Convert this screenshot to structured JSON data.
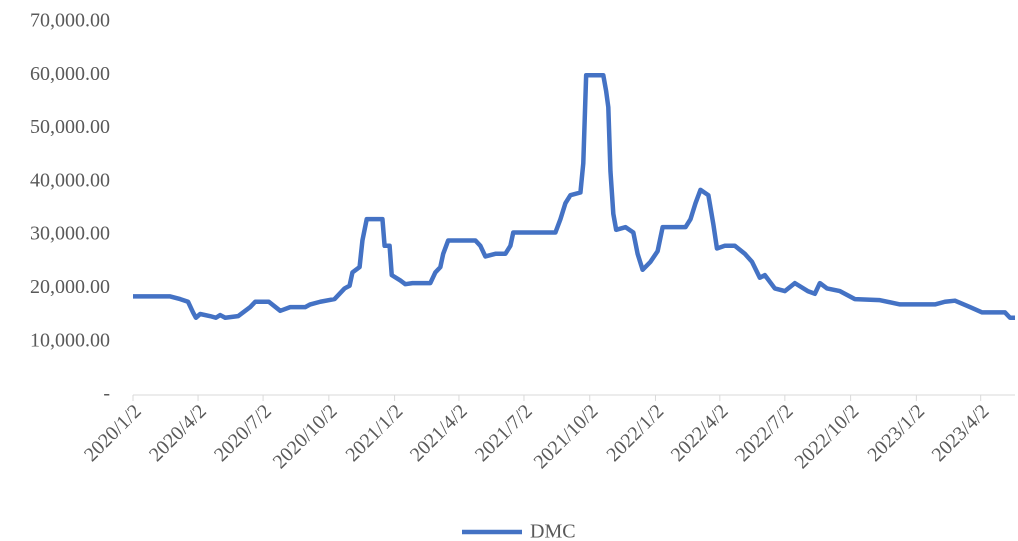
{
  "chart_data": {
    "type": "line",
    "x": [
      "2020/1/2",
      "2020/2/23",
      "2020/3/8",
      "2020/3/19",
      "2020/3/26",
      "2020/3/30",
      "2020/4/5",
      "2020/4/19",
      "2020/4/27",
      "2020/5/3",
      "2020/5/10",
      "2020/5/28",
      "2020/6/14",
      "2020/6/21",
      "2020/7/10",
      "2020/7/26",
      "2020/8/9",
      "2020/8/30",
      "2020/9/6",
      "2020/9/20",
      "2020/10/10",
      "2020/10/24",
      "2020/10/31",
      "2020/11/4",
      "2020/11/14",
      "2020/11/18",
      "2020/11/24",
      "2020/12/16",
      "2020/12/19",
      "2020/12/26",
      "2020/12/29",
      "2021/1/10",
      "2021/1/17",
      "2021/1/27",
      "2021/2/21",
      "2021/2/28",
      "2021/3/7",
      "2021/3/11",
      "2021/3/18",
      "2021/4/25",
      "2021/5/2",
      "2021/5/9",
      "2021/5/23",
      "2021/6/6",
      "2021/6/13",
      "2021/6/17",
      "2021/8/15",
      "2021/8/22",
      "2021/8/29",
      "2021/9/5",
      "2021/9/19",
      "2021/9/23",
      "2021/9/27",
      "2021/10/21",
      "2021/10/25",
      "2021/10/28",
      "2021/10/31",
      "2021/11/4",
      "2021/11/8",
      "2021/11/21",
      "2021/12/2",
      "2021/12/8",
      "2021/12/15",
      "2021/12/26",
      "2022/1/5",
      "2022/1/12",
      "2022/2/13",
      "2022/2/20",
      "2022/2/27",
      "2022/3/6",
      "2022/3/17",
      "2022/3/24",
      "2022/3/29",
      "2022/4/9",
      "2022/4/23",
      "2022/5/7",
      "2022/5/17",
      "2022/5/28",
      "2022/6/4",
      "2022/6/18",
      "2022/7/2",
      "2022/7/16",
      "2022/8/3",
      "2022/8/13",
      "2022/8/20",
      "2022/8/30",
      "2022/9/17",
      "2022/10/8",
      "2022/11/12",
      "2022/12/10",
      "2023/1/28",
      "2023/2/11",
      "2023/2/25",
      "2023/3/18",
      "2023/4/4",
      "2023/5/6",
      "2023/5/13",
      "2023/5/20"
    ],
    "series": [
      {
        "name": "DMC",
        "color": "#4472c4",
        "values": [
          18500,
          18500,
          18000,
          17500,
          15500,
          14500,
          15200,
          14800,
          14500,
          15000,
          14500,
          14800,
          16500,
          17500,
          17500,
          15800,
          16500,
          16500,
          17000,
          17500,
          18000,
          20000,
          20500,
          23000,
          24000,
          29000,
          33000,
          33000,
          28000,
          28000,
          22500,
          21500,
          20800,
          21000,
          21000,
          23000,
          24000,
          26500,
          29000,
          29000,
          28000,
          26000,
          26500,
          26500,
          28000,
          30500,
          30500,
          33000,
          36000,
          37500,
          38000,
          43500,
          60000,
          60000,
          57000,
          54000,
          42000,
          34000,
          31000,
          31500,
          30500,
          26500,
          23500,
          25000,
          27000,
          31500,
          31500,
          33000,
          36000,
          38500,
          37500,
          32000,
          27500,
          28000,
          28000,
          26500,
          25000,
          22000,
          22500,
          20000,
          19500,
          21000,
          19500,
          19000,
          21000,
          20000,
          19500,
          18000,
          17800,
          17000,
          17000,
          17500,
          17700,
          16500,
          15500,
          15500,
          14500,
          14500
        ]
      }
    ],
    "xlim": [
      "2020/1/2",
      "2023/5/20"
    ],
    "xticks": [
      "2020/1/2",
      "2020/4/2",
      "2020/7/2",
      "2020/10/2",
      "2021/1/2",
      "2021/4/2",
      "2021/7/2",
      "2021/10/2",
      "2022/1/2",
      "2022/4/2",
      "2022/7/2",
      "2022/10/2",
      "2023/1/2",
      "2023/4/2"
    ],
    "ylim": [
      0,
      70000
    ],
    "yticks": [
      {
        "value": 0,
        "label": "-"
      },
      {
        "value": 10000,
        "label": "10,000.00"
      },
      {
        "value": 20000,
        "label": "20,000.00"
      },
      {
        "value": 30000,
        "label": "30,000.00"
      },
      {
        "value": 40000,
        "label": "40,000.00"
      },
      {
        "value": 50000,
        "label": "50,000.00"
      },
      {
        "value": 60000,
        "label": "60,000.00"
      },
      {
        "value": 70000,
        "label": "70,000.00"
      }
    ],
    "grid": false,
    "legend": "bottom"
  }
}
